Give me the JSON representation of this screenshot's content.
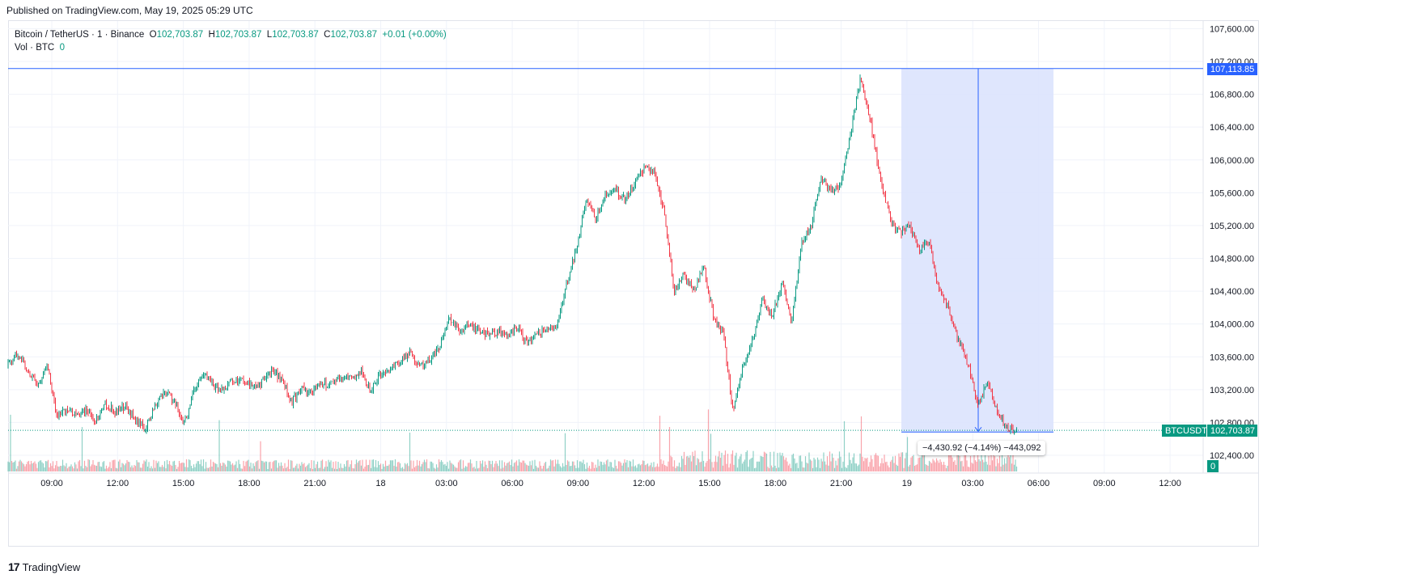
{
  "header": {
    "published": "Published on TradingView.com, May 19, 2025 05:29 UTC"
  },
  "legend": {
    "symbol": "Bitcoin / TetherUS · 1 · Binance",
    "o_label": "O",
    "o": "102,703.87",
    "h_label": "H",
    "h": "102,703.87",
    "l_label": "L",
    "l": "102,703.87",
    "c_label": "C",
    "c": "102,703.87",
    "change": "+0.01 (+0.00%)",
    "vol_label": "Vol · BTC",
    "vol": "0"
  },
  "tags": {
    "high_price": "107,113.85",
    "symbol": "BTCUSDT",
    "last_price": "102,703.87",
    "volume": "0"
  },
  "measure": {
    "label": "−4,430.92 (−4.14%) −443,092"
  },
  "footer": {
    "brand": "TradingView"
  },
  "colors": {
    "up": "#089981",
    "down": "#f23645",
    "line": "#2962ff",
    "measure_fill": "#dbe3fd"
  },
  "chart_data": {
    "type": "candlestick",
    "symbol": "BTCUSDT",
    "interval": "1",
    "y_ticks": [
      "107,600.00",
      "107,200.00",
      "106,800.00",
      "106,400.00",
      "106,000.00",
      "105,600.00",
      "105,200.00",
      "104,800.00",
      "104,400.00",
      "104,000.00",
      "103,600.00",
      "103,200.00",
      "102,800.00",
      "102,400.00"
    ],
    "ylim": [
      102200,
      107800
    ],
    "x_ticks": [
      "09:00",
      "12:00",
      "15:00",
      "18:00",
      "21:00",
      "18",
      "03:00",
      "06:00",
      "09:00",
      "12:00",
      "15:00",
      "18:00",
      "21:00",
      "19",
      "03:00",
      "06:00",
      "09:00",
      "12:00"
    ],
    "close_series": [
      [
        0,
        103500
      ],
      [
        1,
        103640
      ],
      [
        2,
        103450
      ],
      [
        3,
        103250
      ],
      [
        4,
        103520
      ],
      [
        5,
        102850
      ],
      [
        6,
        102980
      ],
      [
        7,
        102870
      ],
      [
        8,
        102980
      ],
      [
        9,
        102820
      ],
      [
        10,
        103020
      ],
      [
        11,
        102930
      ],
      [
        12,
        103000
      ],
      [
        13,
        102830
      ],
      [
        14,
        102720
      ],
      [
        15,
        103000
      ],
      [
        16,
        103200
      ],
      [
        17,
        103050
      ],
      [
        18,
        102800
      ],
      [
        19,
        103180
      ],
      [
        20,
        103380
      ],
      [
        21,
        103250
      ],
      [
        22,
        103210
      ],
      [
        23,
        103320
      ],
      [
        24,
        103320
      ],
      [
        25,
        103220
      ],
      [
        26,
        103300
      ],
      [
        27,
        103440
      ],
      [
        28,
        103300
      ],
      [
        29,
        103050
      ],
      [
        30,
        103210
      ],
      [
        31,
        103170
      ],
      [
        32,
        103280
      ],
      [
        33,
        103250
      ],
      [
        34,
        103330
      ],
      [
        35,
        103340
      ],
      [
        36,
        103420
      ],
      [
        37,
        103190
      ],
      [
        38,
        103380
      ],
      [
        39,
        103460
      ],
      [
        40,
        103530
      ],
      [
        41,
        103660
      ],
      [
        42,
        103480
      ],
      [
        43,
        103560
      ],
      [
        44,
        103710
      ],
      [
        45,
        104060
      ],
      [
        46,
        103940
      ],
      [
        47,
        103980
      ],
      [
        48,
        103920
      ],
      [
        49,
        103870
      ],
      [
        50,
        103910
      ],
      [
        51,
        103870
      ],
      [
        52,
        103960
      ],
      [
        53,
        103750
      ],
      [
        54,
        103880
      ],
      [
        55,
        103930
      ],
      [
        56,
        103990
      ],
      [
        57,
        104500
      ],
      [
        58,
        104900
      ],
      [
        59,
        105500
      ],
      [
        60,
        105300
      ],
      [
        61,
        105580
      ],
      [
        62,
        105650
      ],
      [
        63,
        105500
      ],
      [
        64,
        105750
      ],
      [
        65,
        105900
      ],
      [
        66,
        105850
      ],
      [
        67,
        105350
      ],
      [
        68,
        104400
      ],
      [
        69,
        104600
      ],
      [
        70,
        104400
      ],
      [
        71,
        104700
      ],
      [
        72,
        104100
      ],
      [
        73,
        103900
      ],
      [
        74,
        102900
      ],
      [
        75,
        103500
      ],
      [
        76,
        103800
      ],
      [
        77,
        104300
      ],
      [
        78,
        104100
      ],
      [
        79,
        104500
      ],
      [
        80,
        104000
      ],
      [
        81,
        105000
      ],
      [
        82,
        105200
      ],
      [
        83,
        105800
      ],
      [
        84,
        105600
      ],
      [
        85,
        105700
      ],
      [
        86,
        106300
      ],
      [
        87,
        107000
      ],
      [
        88,
        106500
      ],
      [
        89,
        105800
      ],
      [
        90,
        105300
      ],
      [
        91,
        105100
      ],
      [
        92,
        105200
      ],
      [
        93,
        104900
      ],
      [
        94,
        105000
      ],
      [
        95,
        104400
      ],
      [
        96,
        104200
      ],
      [
        97,
        103800
      ],
      [
        98,
        103500
      ],
      [
        99,
        103000
      ],
      [
        100,
        103300
      ],
      [
        101,
        102900
      ],
      [
        102,
        102750
      ],
      [
        103,
        102704
      ]
    ],
    "last_price": 102703.87,
    "high_line": 107113.85,
    "measure": {
      "from": 107113.85,
      "to": 102682.93,
      "change": -4430.92,
      "change_pct": -4.14
    }
  }
}
